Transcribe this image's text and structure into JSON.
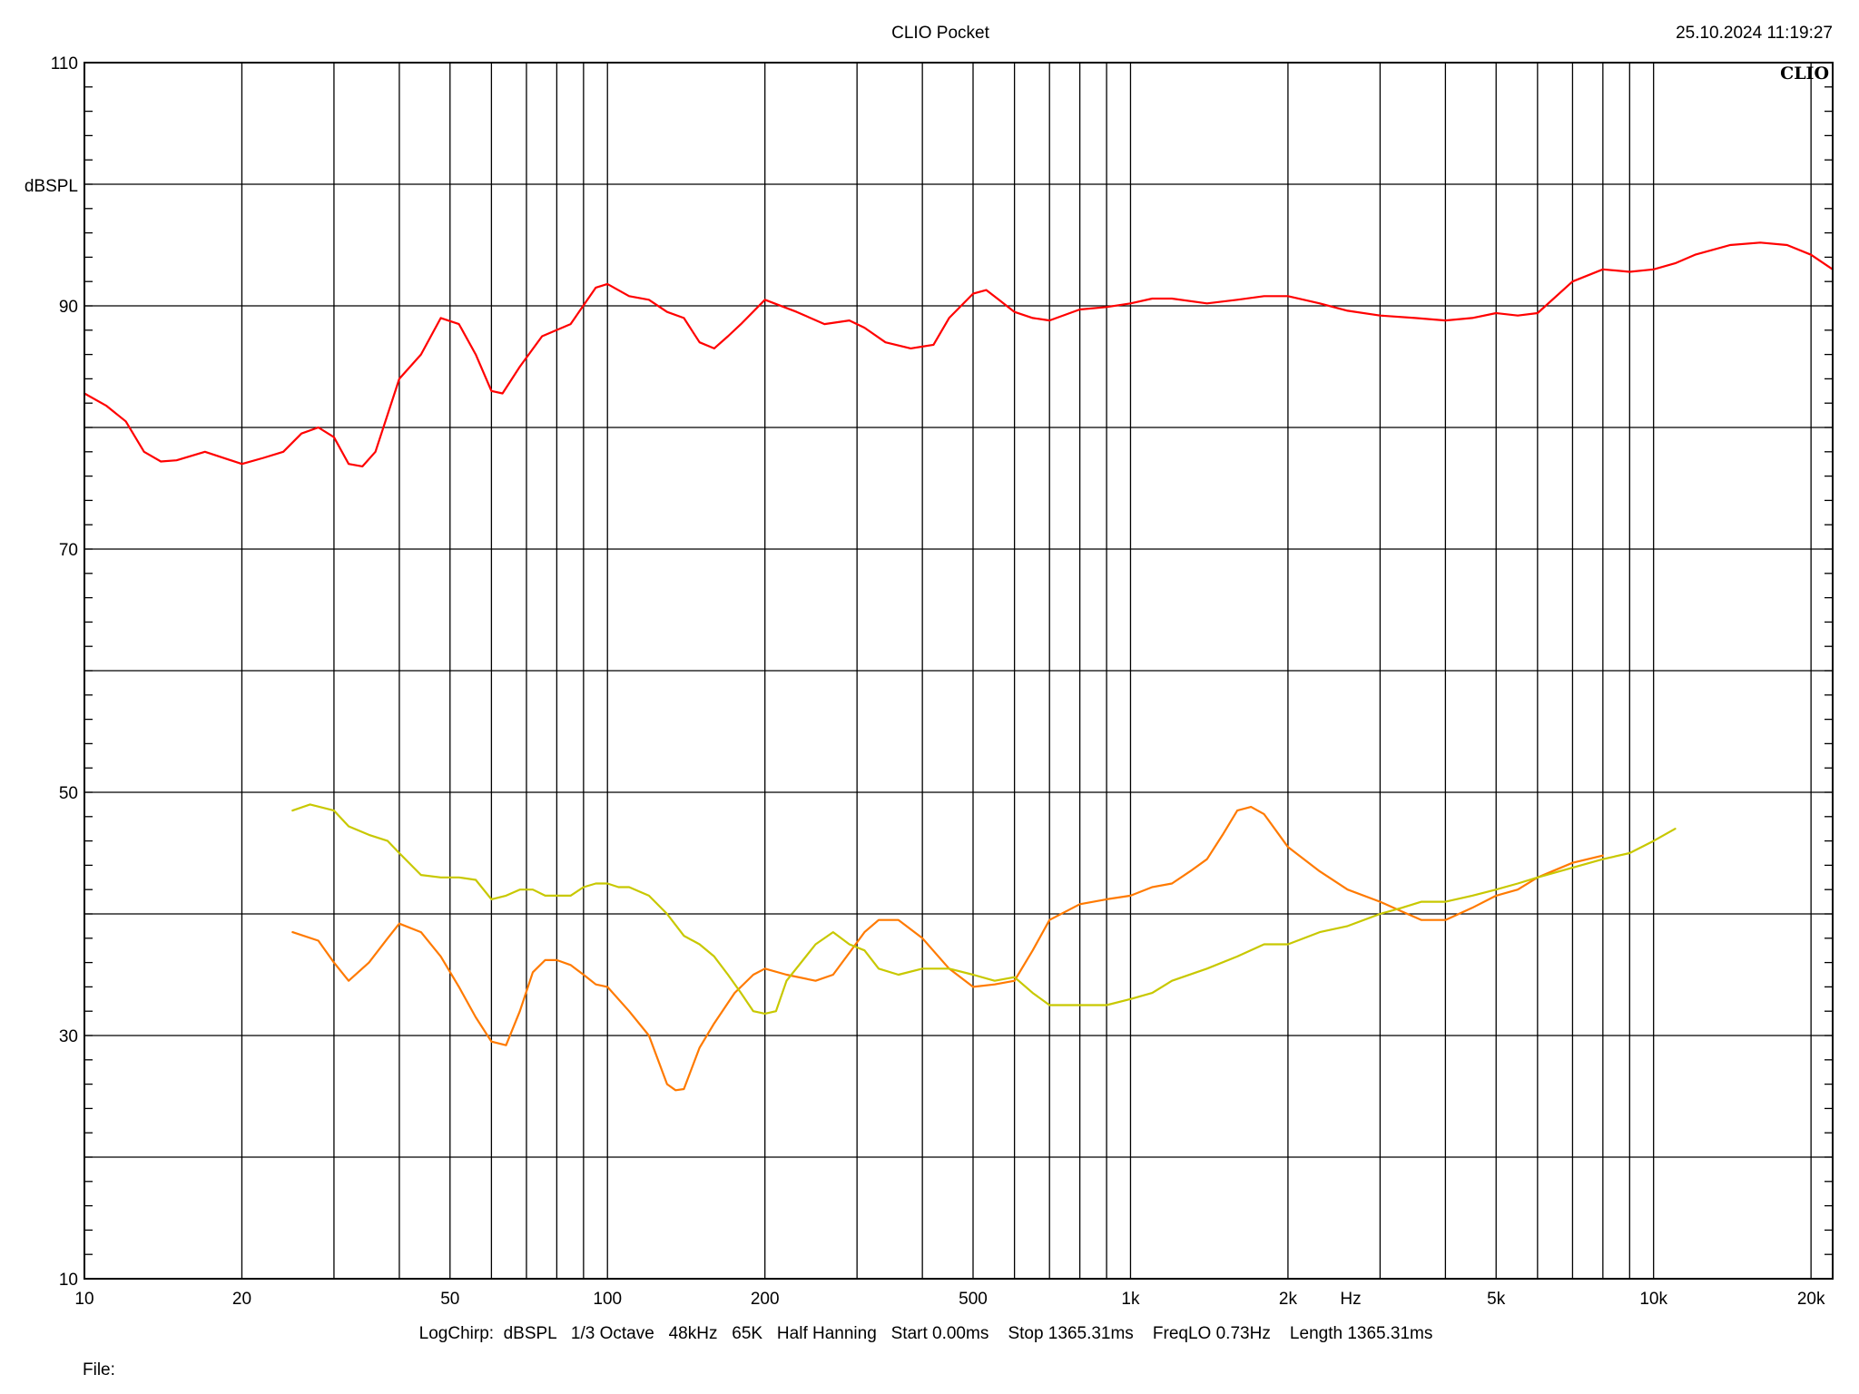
{
  "header": {
    "title": "CLIO Pocket",
    "datetime": "25.10.2024 11:19:27",
    "logo": "CLIO"
  },
  "footer": {
    "settings": "LogChirp:  dBSPL   1/3 Octave   48kHz   65K   Half Hanning   Start 0.00ms    Stop 1365.31ms    FreqLO 0.73Hz    Length 1365.31ms",
    "file_label": "File:"
  },
  "chart_data": {
    "type": "line",
    "title": "CLIO Pocket",
    "xlabel": "Hz",
    "ylabel": "dBSPL",
    "x_scale": "log",
    "xlim": [
      10,
      22000
    ],
    "ylim": [
      10,
      110
    ],
    "grid": true,
    "x_tick_labels": [
      {
        "value": 10,
        "label": "10"
      },
      {
        "value": 20,
        "label": "20"
      },
      {
        "value": 50,
        "label": "50"
      },
      {
        "value": 100,
        "label": "100"
      },
      {
        "value": 200,
        "label": "200"
      },
      {
        "value": 500,
        "label": "500"
      },
      {
        "value": 1000,
        "label": "1k"
      },
      {
        "value": 2000,
        "label": "2k"
      },
      {
        "value": 5000,
        "label": "5k"
      },
      {
        "value": 10000,
        "label": "10k"
      },
      {
        "value": 20000,
        "label": "20k"
      }
    ],
    "x_gridlines": [
      10,
      20,
      30,
      40,
      50,
      60,
      70,
      80,
      90,
      100,
      200,
      300,
      400,
      500,
      600,
      700,
      800,
      900,
      1000,
      2000,
      3000,
      4000,
      5000,
      6000,
      7000,
      8000,
      9000,
      10000,
      20000
    ],
    "y_tick_labels": [
      {
        "value": 110,
        "label": "110"
      },
      {
        "value": 90,
        "label": "90"
      },
      {
        "value": 70,
        "label": "70"
      },
      {
        "value": 50,
        "label": "50"
      },
      {
        "value": 30,
        "label": "30"
      },
      {
        "value": 10,
        "label": "10"
      }
    ],
    "y_gridlines": [
      10,
      20,
      30,
      40,
      50,
      60,
      70,
      80,
      90,
      100,
      110
    ],
    "series": [
      {
        "color": "#ff0000",
        "x": [
          10,
          11,
          12,
          13,
          14,
          15,
          17,
          20,
          22,
          24,
          26,
          28,
          30,
          32,
          34,
          36,
          40,
          44,
          48,
          52,
          56,
          60,
          63,
          68,
          75,
          85,
          95,
          100,
          110,
          120,
          130,
          140,
          150,
          160,
          170,
          180,
          200,
          230,
          260,
          290,
          310,
          340,
          380,
          420,
          450,
          500,
          530,
          560,
          600,
          650,
          700,
          800,
          900,
          1000,
          1100,
          1200,
          1400,
          1600,
          1800,
          2000,
          2300,
          2600,
          3000,
          3500,
          4000,
          4500,
          5000,
          5500,
          6000,
          7000,
          8000,
          9000,
          10000,
          11000,
          12000,
          14000,
          16000,
          18000,
          20000,
          22000
        ],
        "values": [
          82.8,
          81.8,
          80.5,
          78,
          77.2,
          77.3,
          78,
          77.0,
          77.5,
          78.0,
          79.5,
          80.0,
          79.2,
          77,
          76.8,
          78,
          84,
          86,
          89,
          88.5,
          86,
          83,
          82.8,
          85,
          87.5,
          88.5,
          91.5,
          91.8,
          90.8,
          90.5,
          89.5,
          89,
          87,
          86.5,
          87.5,
          88.5,
          90.5,
          89.5,
          88.5,
          88.8,
          88.2,
          87,
          86.5,
          86.8,
          89,
          91,
          91.3,
          90.5,
          89.5,
          89.0,
          88.8,
          89.7,
          89.9,
          90.2,
          90.6,
          90.6,
          90.2,
          90.5,
          90.8,
          90.8,
          90.2,
          89.6,
          89.2,
          89.0,
          88.8,
          89.0,
          89.4,
          89.2,
          89.4,
          92,
          93,
          92.8,
          93,
          93.5,
          94.2,
          95,
          95.2,
          95.0,
          94.2,
          93
        ]
      },
      {
        "color": "#ff7a00",
        "x": [
          25,
          28,
          30,
          32,
          35,
          38,
          40,
          44,
          48,
          52,
          56,
          60,
          64,
          68,
          72,
          76,
          80,
          85,
          90,
          95,
          100,
          110,
          120,
          130,
          135,
          140,
          150,
          160,
          175,
          190,
          200,
          220,
          250,
          270,
          290,
          310,
          330,
          360,
          400,
          450,
          500,
          550,
          600,
          650,
          700,
          800,
          900,
          1000,
          1100,
          1200,
          1300,
          1400,
          1500,
          1600,
          1700,
          1800,
          2000,
          2300,
          2600,
          3000,
          3300,
          3600,
          4000,
          4500,
          5000,
          5500,
          6000,
          7000,
          8000
        ],
        "values": [
          38.5,
          37.8,
          36,
          34.5,
          36,
          38,
          39.2,
          38.5,
          36.5,
          34,
          31.5,
          29.5,
          29.2,
          32,
          35.2,
          36.2,
          36.2,
          35.8,
          35,
          34.2,
          34,
          32,
          30,
          26,
          25.5,
          25.6,
          29,
          31,
          33.5,
          35,
          35.5,
          35,
          34.5,
          35,
          36.8,
          38.5,
          39.5,
          39.5,
          38,
          35.5,
          34,
          34.2,
          34.5,
          37,
          39.5,
          40.8,
          41.2,
          41.5,
          42.2,
          42.5,
          43.5,
          44.5,
          46.5,
          48.5,
          48.8,
          48.2,
          45.5,
          43.5,
          42,
          41,
          40.2,
          39.5,
          39.5,
          40.5,
          41.5,
          42,
          43,
          44.2,
          44.8
        ]
      },
      {
        "color": "#c8c800",
        "x": [
          25,
          27,
          30,
          32,
          35,
          38,
          40,
          44,
          48,
          52,
          56,
          60,
          64,
          68,
          72,
          76,
          80,
          85,
          90,
          95,
          100,
          105,
          110,
          120,
          130,
          140,
          150,
          160,
          170,
          180,
          190,
          200,
          210,
          220,
          250,
          270,
          290,
          310,
          330,
          360,
          400,
          450,
          500,
          550,
          600,
          650,
          700,
          800,
          900,
          1000,
          1100,
          1200,
          1400,
          1600,
          1800,
          2000,
          2300,
          2600,
          3000,
          3300,
          3600,
          4000,
          4500,
          5000,
          5500,
          6000,
          7000,
          8000,
          9000,
          10000,
          11000
        ],
        "values": [
          48.5,
          49,
          48.5,
          47.2,
          46.5,
          46,
          45,
          43.2,
          43,
          43,
          42.8,
          41.2,
          41.5,
          42,
          42,
          41.5,
          41.5,
          41.5,
          42.2,
          42.5,
          42.5,
          42.2,
          42.2,
          41.5,
          40,
          38.2,
          37.5,
          36.5,
          35,
          33.5,
          32,
          31.8,
          32,
          34.5,
          37.5,
          38.5,
          37.5,
          37,
          35.5,
          35,
          35.5,
          35.5,
          35,
          34.5,
          34.8,
          33.5,
          32.5,
          32.5,
          32.5,
          33,
          33.5,
          34.5,
          35.5,
          36.5,
          37.5,
          37.5,
          38.5,
          39,
          40,
          40.5,
          41,
          41,
          41.5,
          42,
          42.5,
          43,
          43.8,
          44.5,
          45,
          46,
          47
        ]
      }
    ]
  }
}
